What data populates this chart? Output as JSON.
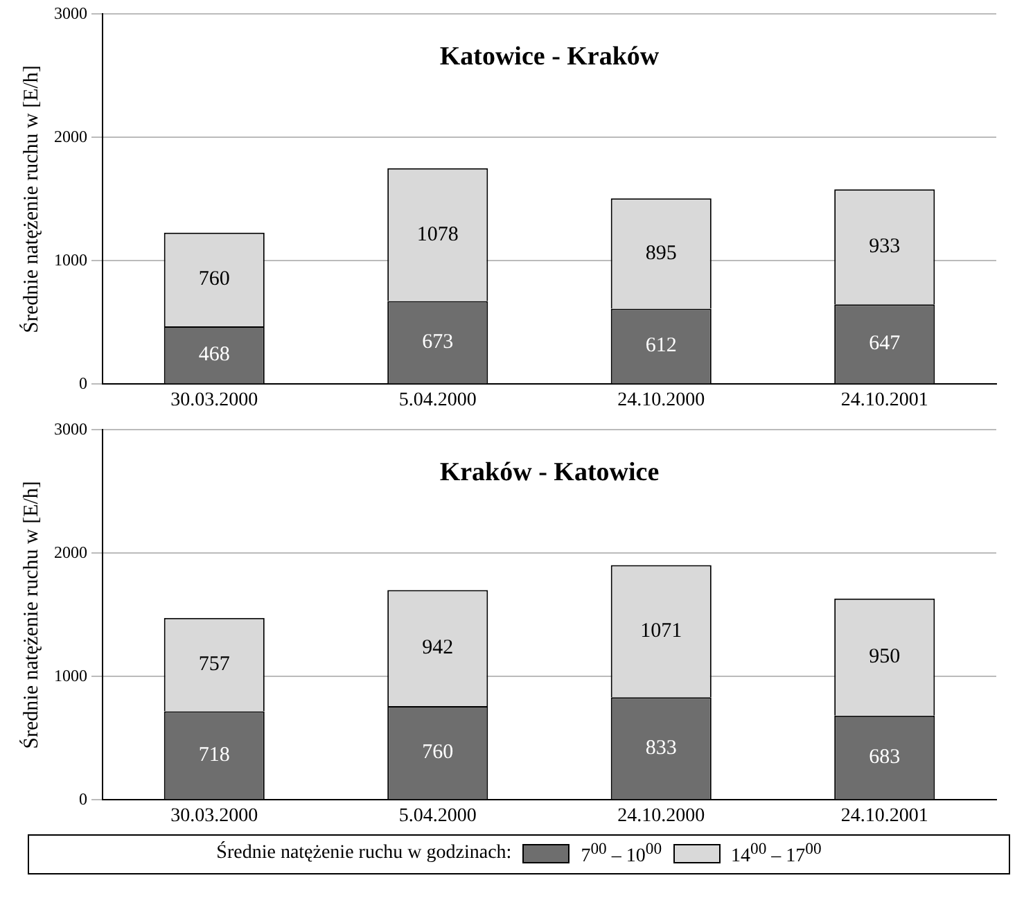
{
  "chart_data": [
    {
      "type": "bar",
      "title": "Katowice - Kraków",
      "ylabel": "Średnie natężenie ruchu w [E/h]",
      "categories": [
        "30.03.2000",
        "5.04.2000",
        "24.10.2000",
        "24.10.2001"
      ],
      "stacked": true,
      "series": [
        {
          "color": "#6e6e6e",
          "values": [
            468,
            673,
            612,
            647
          ]
        },
        {
          "color": "#d9d9d9",
          "values": [
            760,
            1078,
            895,
            933
          ]
        }
      ],
      "ylim": [
        0,
        3000
      ],
      "yticks": [
        0,
        1000,
        2000,
        3000
      ],
      "grid": "y",
      "legend": false,
      "data_labels": true
    },
    {
      "type": "bar",
      "title": "Kraków - Katowice",
      "ylabel": "Średnie natężenie ruchu w [E/h]",
      "categories": [
        "30.03.2000",
        "5.04.2000",
        "24.10.2000",
        "24.10.2001"
      ],
      "stacked": true,
      "series": [
        {
          "name": "7$^{00}$ – 10$^{00}$",
          "color": "#6e6e6e",
          "values": [
            718,
            760,
            833,
            683
          ]
        },
        {
          "name": "14$^{00}$ – 17$^{00}$",
          "color": "#d9d9d9",
          "values": [
            757,
            942,
            1071,
            950
          ]
        }
      ],
      "ylim": [
        0,
        3000
      ],
      "yticks": [
        0,
        1000,
        2000,
        3000
      ],
      "grid": "y",
      "legend": "bottom",
      "legend_title": "Średnie natężenie ruchu w godzinach:",
      "data_labels": true
    }
  ]
}
